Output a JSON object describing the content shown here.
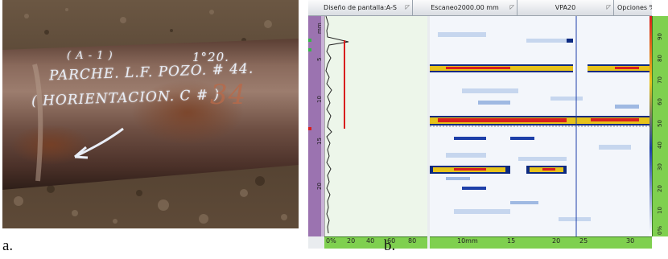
{
  "captions": {
    "a": "a.",
    "b": "b."
  },
  "photo": {
    "inscription": {
      "line1": "( A - 1 )",
      "line2": "1°20.",
      "line3": "PARCHE. L.F. POZO. # 44.",
      "line4": "( HORIENTACION. C # )",
      "line5": "34"
    }
  },
  "toolbar": {
    "display_label": "Diseño de pantalla:A-S",
    "scan_label": "Escaneo2000.00 mm",
    "group_label": "VPA20",
    "options_label": "Opciones %"
  },
  "depth_ruler": {
    "unit": "mm",
    "ticks": [
      "5",
      "10",
      "15",
      "20"
    ]
  },
  "ascan_ruler": {
    "ticks": [
      "0%",
      "20",
      "40",
      "60",
      "80"
    ]
  },
  "bscan_ruler": {
    "ticks": [
      "10mm",
      "15",
      "20",
      "25",
      "30"
    ]
  },
  "amplitude_scale": {
    "ticks": [
      "90",
      "80",
      "70",
      "60",
      "50",
      "40",
      "30",
      "20",
      "10",
      "0%"
    ]
  },
  "colors": {
    "ruler_green": "#7fd04f",
    "ruler_purple": "#9b73b0",
    "gate_red": "#d81e1e",
    "cursor_blue": "#1d3fa8"
  }
}
